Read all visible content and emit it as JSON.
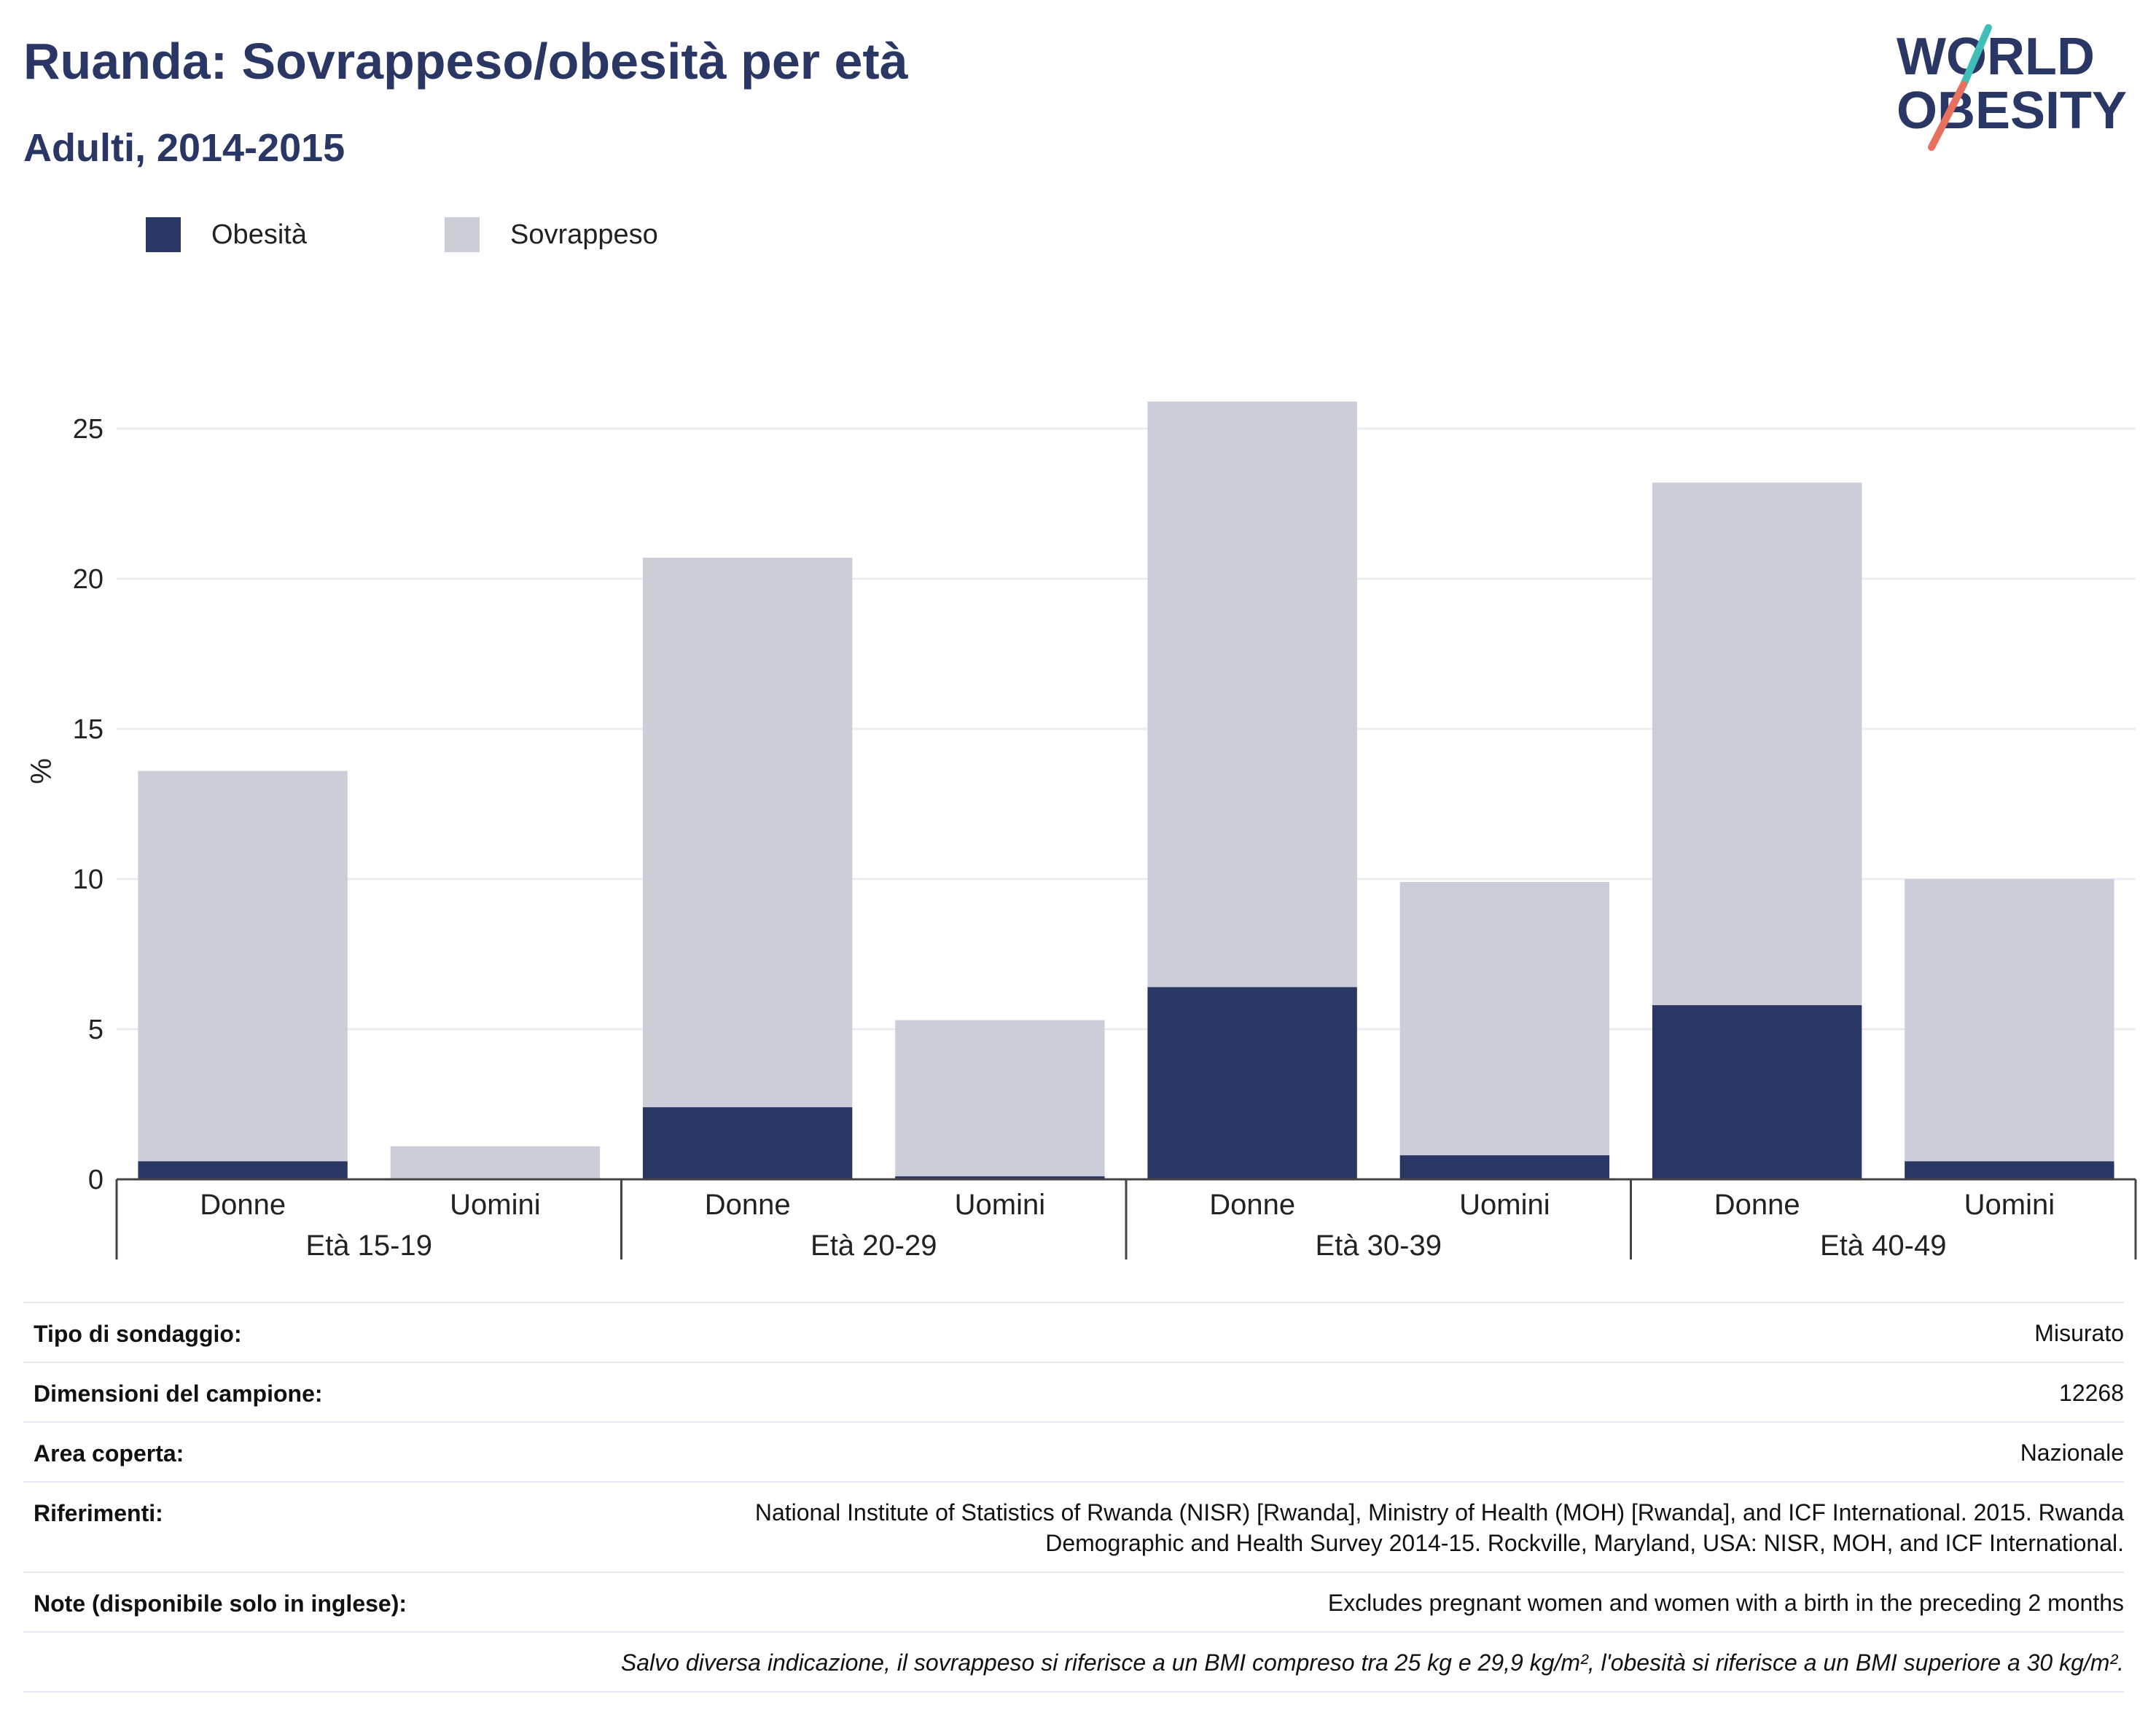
{
  "title": "Ruanda: Sovrappeso/obesità per età",
  "subtitle": "Adulti, 2014-2015",
  "logo": {
    "line1": "WORLD",
    "line2": "OBESITY"
  },
  "colors": {
    "obesity": "#2a3663",
    "overweight": "#cbcdd9",
    "title": "#2a3663",
    "logo_teal": "#3fbfb8",
    "logo_coral": "#e8705f"
  },
  "legend": [
    {
      "name": "Obesità",
      "color": "#2a3663"
    },
    {
      "name": "Sovrappeso",
      "color": "#cbcdd9"
    }
  ],
  "chart_data": {
    "type": "bar",
    "stacked": true,
    "ylabel": "%",
    "ylim": [
      0,
      27
    ],
    "yticks": [
      0,
      5,
      10,
      15,
      20,
      25
    ],
    "grid": true,
    "legend_position": "top-left",
    "groups": [
      "Età 15-19",
      "Età 20-29",
      "Età 30-39",
      "Età 40-49"
    ],
    "categories": [
      "Donne",
      "Uomini"
    ],
    "bars": [
      {
        "group": "Età 15-19",
        "category": "Donne",
        "obesity": 0.6,
        "total": 13.6
      },
      {
        "group": "Età 15-19",
        "category": "Uomini",
        "obesity": 0.0,
        "total": 1.1
      },
      {
        "group": "Età 20-29",
        "category": "Donne",
        "obesity": 2.4,
        "total": 20.7
      },
      {
        "group": "Età 20-29",
        "category": "Uomini",
        "obesity": 0.1,
        "total": 5.3
      },
      {
        "group": "Età 30-39",
        "category": "Donne",
        "obesity": 6.4,
        "total": 25.9
      },
      {
        "group": "Età 30-39",
        "category": "Uomini",
        "obesity": 0.8,
        "total": 9.9
      },
      {
        "group": "Età 40-49",
        "category": "Donne",
        "obesity": 5.8,
        "total": 23.2
      },
      {
        "group": "Età 40-49",
        "category": "Uomini",
        "obesity": 0.6,
        "total": 10.0
      }
    ]
  },
  "info": [
    {
      "label": "Tipo di sondaggio:",
      "value": [
        "Misurato"
      ]
    },
    {
      "label": "Dimensioni del campione:",
      "value": [
        "12268"
      ]
    },
    {
      "label": "Area coperta:",
      "value": [
        "Nazionale"
      ]
    },
    {
      "label": "Riferimenti:",
      "value": [
        "National Institute of Statistics of Rwanda (NISR) [Rwanda], Ministry of Health (MOH) [Rwanda], and ICF International. 2015. Rwanda",
        "Demographic and Health Survey 2014-15. Rockville, Maryland, USA: NISR, MOH, and ICF International."
      ]
    },
    {
      "label": "Note (disponibile solo in inglese):",
      "value": [
        "Excludes pregnant women and women with a birth in the preceding 2 months"
      ]
    },
    {
      "label": "",
      "value": [
        "Salvo diversa indicazione, il sovrappeso si riferisce a un BMI compreso tra 25 kg e 29,9 kg/m², l'obesità si riferisce a un BMI superiore a 30 kg/m²."
      ],
      "italic": true
    }
  ]
}
